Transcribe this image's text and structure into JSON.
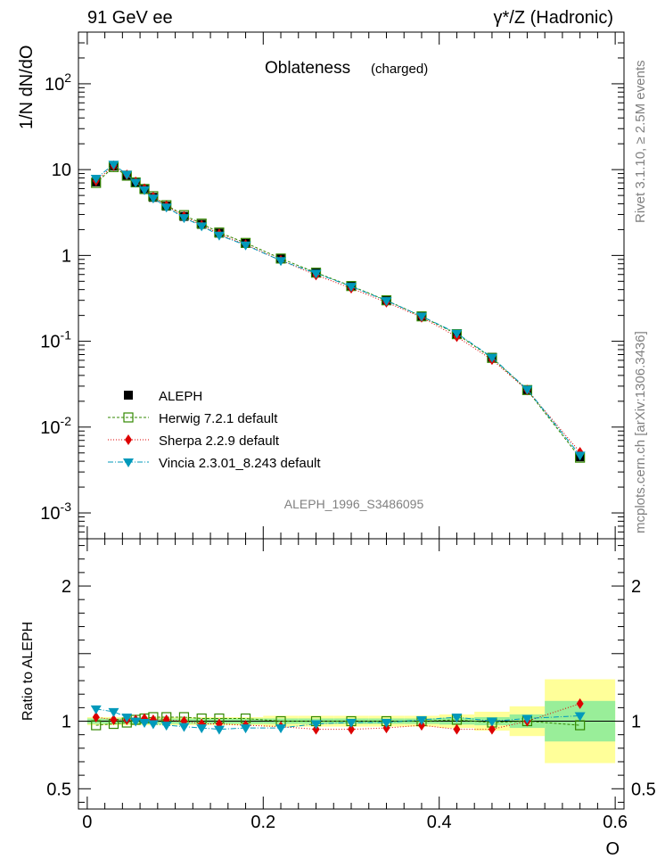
{
  "header": {
    "left": "91 GeV ee",
    "right": "γ*/Z (Hadronic)"
  },
  "side_labels": {
    "rivet": "Rivet 3.1.10, ≥ 2.5M events",
    "mcplots": "mcplots.cern.ch [arXiv:1306.3436]"
  },
  "chart_data": [
    {
      "type": "line",
      "title": "Oblateness",
      "subtitle": "(charged)",
      "analysis_label": "ALEPH_1996_S3486095",
      "ylabel": "1/N dN/dO",
      "xlabel": "O",
      "yscale": "log",
      "ylim": [
        0.0005,
        400
      ],
      "xlim": [
        -0.01,
        0.61
      ],
      "ytick_labels": [
        "10^-3",
        "10^-2",
        "10^-1",
        "1",
        "10",
        "10^2"
      ],
      "legend_position": "lower-left",
      "x": [
        0.01,
        0.03,
        0.045,
        0.055,
        0.065,
        0.075,
        0.09,
        0.11,
        0.13,
        0.15,
        0.18,
        0.22,
        0.26,
        0.3,
        0.34,
        0.38,
        0.42,
        0.46,
        0.5,
        0.56
      ],
      "series": [
        {
          "name": "ALEPH",
          "marker": "square-filled",
          "color": "#000000",
          "values": [
            7.2,
            11.0,
            8.6,
            7.1,
            5.85,
            4.75,
            3.75,
            2.85,
            2.3,
            1.82,
            1.38,
            0.92,
            0.63,
            0.44,
            0.3,
            0.195,
            0.12,
            0.065,
            0.027,
            0.0045
          ]
        },
        {
          "name": "Herwig 7.2.1 default",
          "marker": "square-open",
          "color": "#338800",
          "values": [
            7.0,
            10.7,
            8.5,
            7.1,
            5.95,
            4.9,
            3.85,
            2.95,
            2.35,
            1.85,
            1.4,
            0.92,
            0.63,
            0.44,
            0.3,
            0.195,
            0.121,
            0.064,
            0.027,
            0.0044
          ]
        },
        {
          "name": "Sherpa 2.2.9 default",
          "marker": "diamond",
          "color": "#dd0000",
          "values": [
            7.4,
            11.1,
            8.7,
            7.2,
            6.0,
            4.8,
            3.8,
            2.85,
            2.25,
            1.78,
            1.34,
            0.88,
            0.59,
            0.415,
            0.285,
            0.19,
            0.113,
            0.061,
            0.027,
            0.0051
          ]
        },
        {
          "name": "Vincia 2.3.01_8.243 default",
          "marker": "triangle-down",
          "color": "#0099bb",
          "values": [
            7.9,
            11.5,
            8.8,
            7.1,
            5.8,
            4.65,
            3.65,
            2.75,
            2.2,
            1.72,
            1.32,
            0.87,
            0.62,
            0.435,
            0.297,
            0.196,
            0.124,
            0.065,
            0.0275,
            0.0047
          ]
        }
      ]
    },
    {
      "type": "line",
      "ylabel": "Ratio to ALEPH",
      "xlabel": "O",
      "ylim": [
        0.35,
        2.35
      ],
      "xlim": [
        -0.01,
        0.61
      ],
      "ytick_labels": [
        "0.5",
        "1",
        "2"
      ],
      "xtick_labels": [
        "0",
        "0.2",
        "0.4",
        "0.6"
      ],
      "bands": {
        "x_edges": [
          0.0,
          0.02,
          0.04,
          0.05,
          0.06,
          0.07,
          0.08,
          0.1,
          0.12,
          0.14,
          0.16,
          0.2,
          0.24,
          0.28,
          0.32,
          0.36,
          0.4,
          0.44,
          0.48,
          0.52,
          0.6
        ],
        "stat_halfwidth": [
          0.02,
          0.02,
          0.02,
          0.02,
          0.02,
          0.02,
          0.02,
          0.02,
          0.02,
          0.02,
          0.02,
          0.02,
          0.02,
          0.02,
          0.02,
          0.02,
          0.025,
          0.03,
          0.05,
          0.15
        ],
        "total_halfwidth": [
          0.03,
          0.03,
          0.03,
          0.03,
          0.03,
          0.03,
          0.03,
          0.03,
          0.03,
          0.03,
          0.03,
          0.04,
          0.04,
          0.04,
          0.04,
          0.04,
          0.05,
          0.07,
          0.11,
          0.31
        ],
        "stat_color": "#99ee99",
        "total_color": "#ffff99"
      },
      "series": [
        {
          "name": "Herwig 7.2.1 default",
          "values": [
            0.97,
            0.98,
            0.99,
            1.01,
            1.02,
            1.03,
            1.03,
            1.03,
            1.02,
            1.02,
            1.02,
            1.0,
            1.0,
            1.0,
            1.0,
            1.0,
            1.01,
            0.99,
            1.0,
            0.97
          ]
        },
        {
          "name": "Sherpa 2.2.9 default",
          "values": [
            1.03,
            1.01,
            1.01,
            1.01,
            1.02,
            1.01,
            1.01,
            1.0,
            0.98,
            0.98,
            0.97,
            0.96,
            0.94,
            0.94,
            0.95,
            0.97,
            0.94,
            0.94,
            1.0,
            1.13
          ]
        },
        {
          "name": "Vincia 2.3.01_8.243 default",
          "values": [
            1.09,
            1.07,
            1.03,
            1.0,
            0.99,
            0.98,
            0.97,
            0.96,
            0.95,
            0.94,
            0.95,
            0.95,
            0.98,
            0.99,
            0.99,
            1.01,
            1.03,
            1.0,
            1.02,
            1.04
          ]
        }
      ]
    }
  ]
}
